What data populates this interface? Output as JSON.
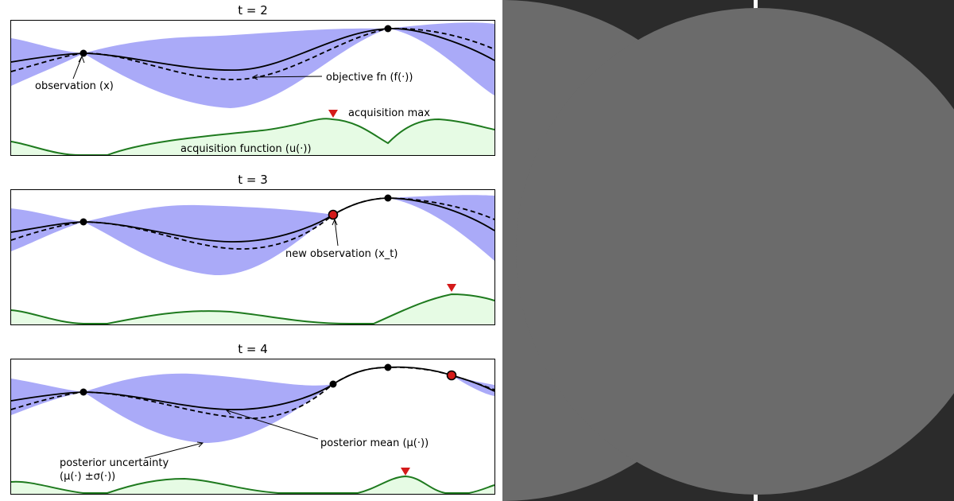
{
  "figure": {
    "panels": [
      {
        "title": "t = 2",
        "annotations": [
          {
            "id": "observation",
            "text": "observation (x)"
          },
          {
            "id": "objective",
            "text": "objective fn (f(·))"
          },
          {
            "id": "acqmax",
            "text": "acquisition max"
          },
          {
            "id": "acqfn",
            "text": "acquisition function (u(·))"
          }
        ]
      },
      {
        "title": "t = 3",
        "annotations": [
          {
            "id": "newobs",
            "text": "new observation (x_t)"
          }
        ]
      },
      {
        "title": "t = 4",
        "annotations": [
          {
            "id": "postmean",
            "text": "posterior mean (μ(·))"
          },
          {
            "id": "postunc1",
            "text": "posterior uncertainty"
          },
          {
            "id": "postunc2",
            "text": "(μ(·) ±σ(·))"
          }
        ]
      }
    ],
    "colors": {
      "uncertainty_band": "#aaaaf8",
      "acquisition_line": "#1e7a1e",
      "acquisition_fill": "#e6fbe4",
      "new_observation": "#d41a1a",
      "acquisition_max_marker": "#d41a1a"
    }
  },
  "right_panel": {
    "background": "#2b2b2b",
    "disc_color": "#6b6b6b",
    "divider_color": "#ffffff"
  }
}
